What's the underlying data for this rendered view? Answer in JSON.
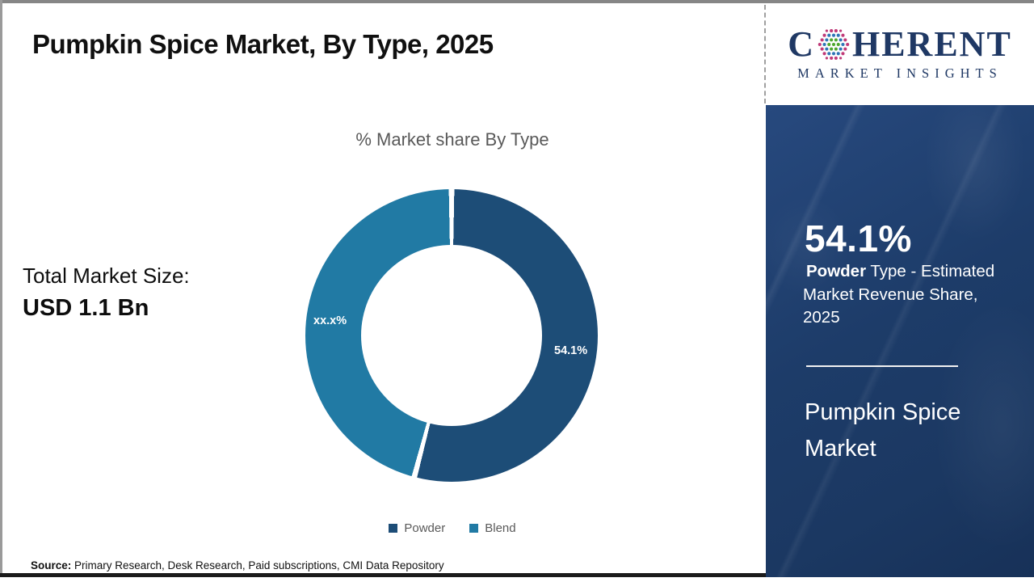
{
  "page": {
    "title": "Pumpkin Spice Market, By Type, 2025",
    "source_label": "Source:",
    "source_text": " Primary Research, Desk Research, Paid subscriptions, CMI Data Repository"
  },
  "logo": {
    "brand_prefix": "C",
    "brand_suffix": "HERENT",
    "subtitle": "MARKET INSIGHTS",
    "brand_color": "#1f3864",
    "globe_dot_colors": {
      "inner": "#4ea72e",
      "middle": "#2e75b6",
      "outer": "#c03a78"
    }
  },
  "left_stats": {
    "total_label": "Total Market Size:",
    "total_value": "USD 1.1 Bn"
  },
  "sidebar": {
    "stat_value": "54.1%",
    "desc_bold": "Powder",
    "desc_rest": " Type - Estimated Market Revenue Share, 2025",
    "title": "Pumpkin Spice Market",
    "background_color": "#1d3c69"
  },
  "chart_data": {
    "type": "pie",
    "variant": "donut",
    "title": "% Market share By Type",
    "series": [
      {
        "label": "Powder",
        "value": 54.1,
        "display_label": "54.1%",
        "color": "#1d4d77"
      },
      {
        "label": "Blend",
        "value": 45.9,
        "display_label": "xx.x%",
        "color": "#217aa4"
      }
    ],
    "start_angle_deg": 0,
    "direction": "clockwise",
    "legend_position": "bottom",
    "note": "Blend slice value is masked in the figure as xx.x% (remainder of 100 - 54.1)"
  }
}
